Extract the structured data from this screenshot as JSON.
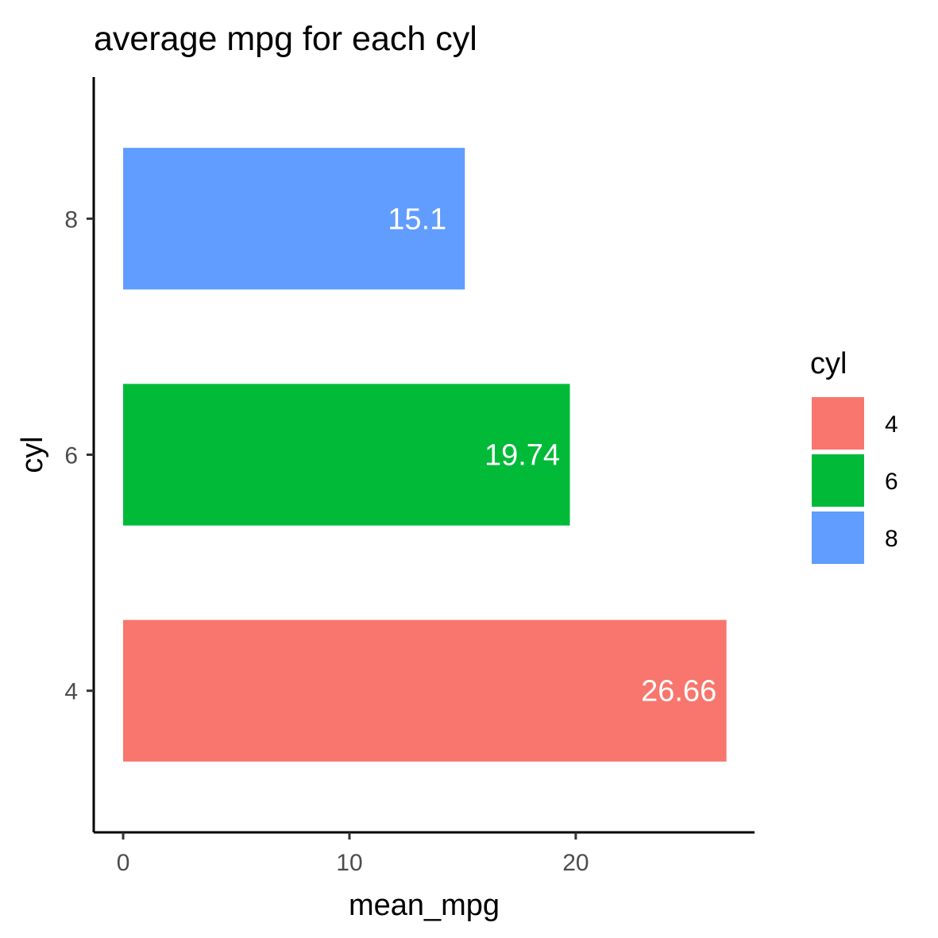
{
  "chart_data": {
    "type": "bar",
    "orientation": "horizontal",
    "title": "average mpg for each cyl",
    "xlabel": "mean_mpg",
    "ylabel": "cyl",
    "xlim": [
      -1.3,
      27.9
    ],
    "xticks": [
      0,
      10,
      20
    ],
    "categories": [
      "4",
      "6",
      "8"
    ],
    "values": [
      26.66,
      19.74,
      15.1
    ],
    "data_labels": [
      "26.66",
      "19.74",
      "15.1"
    ],
    "colors": [
      "#F8766D",
      "#00BA38",
      "#619CFF"
    ],
    "grid": false,
    "legend": {
      "title": "cyl",
      "position": "right",
      "entries": [
        "4",
        "6",
        "8"
      ]
    }
  }
}
